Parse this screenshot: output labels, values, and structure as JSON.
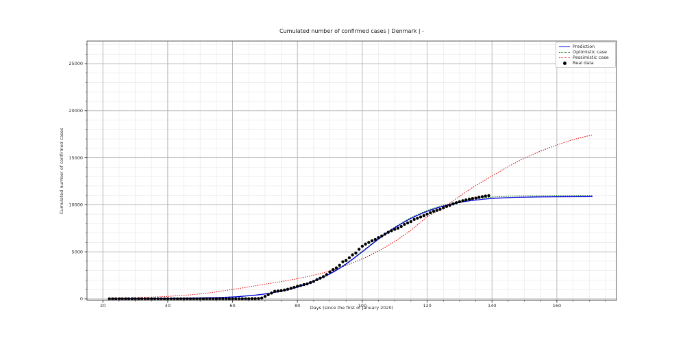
{
  "figure": {
    "title": "Cumulated number of confirmed cases | Denmark | -"
  },
  "chart_data": {
    "type": "line",
    "title": "Cumulated number of confirmed cases | Denmark | -",
    "xlabel": "Days (since the first of January 2020)",
    "ylabel": "Cumulated number of confirmed cases",
    "xlim": [
      15.1,
      178.4
    ],
    "ylim": [
      -150,
      27400
    ],
    "xticks": [
      20,
      40,
      60,
      80,
      100,
      120,
      140,
      160
    ],
    "yticks": [
      0,
      5000,
      10000,
      15000,
      20000,
      25000
    ],
    "x_minor_step": 5,
    "y_minor_step": 1000,
    "grid": true,
    "legend_position": "upper right",
    "colors": {
      "prediction": "#0000dd",
      "optimistic": "#007000",
      "pessimistic": "#e60000",
      "real_data": "#000000",
      "major_grid": "#b3b3b3",
      "minor_grid": "#e9e9e9",
      "spine": "#555555",
      "tick": "#333333"
    },
    "series": [
      {
        "name": "Prediction",
        "kind": "line",
        "style": "solid",
        "color": "#0000dd",
        "points": [
          [
            22,
            5
          ],
          [
            30,
            15
          ],
          [
            40,
            40
          ],
          [
            45,
            65
          ],
          [
            50,
            100
          ],
          [
            55,
            140
          ],
          [
            60,
            200
          ],
          [
            65,
            330
          ],
          [
            70,
            520
          ],
          [
            75,
            820
          ],
          [
            80,
            1250
          ],
          [
            85,
            1870
          ],
          [
            90,
            2650
          ],
          [
            95,
            3700
          ],
          [
            100,
            5000
          ],
          [
            105,
            6350
          ],
          [
            110,
            7550
          ],
          [
            115,
            8550
          ],
          [
            120,
            9300
          ],
          [
            125,
            9850
          ],
          [
            130,
            10250
          ],
          [
            135,
            10500
          ],
          [
            140,
            10670
          ],
          [
            145,
            10760
          ],
          [
            150,
            10810
          ],
          [
            155,
            10835
          ],
          [
            160,
            10855
          ],
          [
            165,
            10865
          ],
          [
            171,
            10870
          ]
        ]
      },
      {
        "name": "Optimistic case",
        "kind": "line",
        "style": "dotted",
        "color": "#007000",
        "points": [
          [
            22,
            5
          ],
          [
            30,
            16
          ],
          [
            40,
            42
          ],
          [
            50,
            105
          ],
          [
            60,
            210
          ],
          [
            65,
            340
          ],
          [
            70,
            540
          ],
          [
            75,
            845
          ],
          [
            80,
            1290
          ],
          [
            85,
            1920
          ],
          [
            90,
            2700
          ],
          [
            95,
            3760
          ],
          [
            100,
            5060
          ],
          [
            105,
            6420
          ],
          [
            110,
            7620
          ],
          [
            115,
            8620
          ],
          [
            120,
            9380
          ],
          [
            125,
            9940
          ],
          [
            130,
            10360
          ],
          [
            135,
            10640
          ],
          [
            140,
            10810
          ],
          [
            145,
            10900
          ],
          [
            150,
            10940
          ],
          [
            160,
            10975
          ],
          [
            171,
            10990
          ]
        ]
      },
      {
        "name": "Pessimistic case",
        "kind": "line",
        "style": "dotted",
        "color": "#e60000",
        "points": [
          [
            22,
            70
          ],
          [
            30,
            140
          ],
          [
            40,
            270
          ],
          [
            50,
            530
          ],
          [
            60,
            1000
          ],
          [
            70,
            1560
          ],
          [
            75,
            1840
          ],
          [
            80,
            2150
          ],
          [
            85,
            2520
          ],
          [
            90,
            2960
          ],
          [
            95,
            3560
          ],
          [
            100,
            4250
          ],
          [
            105,
            5100
          ],
          [
            110,
            6100
          ],
          [
            115,
            7300
          ],
          [
            120,
            8700
          ],
          [
            125,
            9700
          ],
          [
            130,
            10900
          ],
          [
            135,
            12050
          ],
          [
            140,
            13050
          ],
          [
            145,
            14050
          ],
          [
            150,
            14950
          ],
          [
            155,
            15700
          ],
          [
            160,
            16350
          ],
          [
            165,
            16920
          ],
          [
            171,
            17430
          ]
        ]
      },
      {
        "name": "Real data",
        "kind": "scatter",
        "style": "marker",
        "color": "#000000",
        "marker_radius": 2.2,
        "points": [
          [
            22,
            0
          ],
          [
            23,
            0
          ],
          [
            24,
            0
          ],
          [
            25,
            0
          ],
          [
            26,
            0
          ],
          [
            27,
            0
          ],
          [
            28,
            0
          ],
          [
            29,
            0
          ],
          [
            30,
            0
          ],
          [
            31,
            0
          ],
          [
            32,
            0
          ],
          [
            33,
            0
          ],
          [
            34,
            0
          ],
          [
            35,
            0
          ],
          [
            36,
            0
          ],
          [
            37,
            0
          ],
          [
            38,
            0
          ],
          [
            39,
            0
          ],
          [
            40,
            0
          ],
          [
            41,
            0
          ],
          [
            42,
            0
          ],
          [
            43,
            0
          ],
          [
            44,
            0
          ],
          [
            45,
            0
          ],
          [
            46,
            0
          ],
          [
            47,
            0
          ],
          [
            48,
            0
          ],
          [
            49,
            0
          ],
          [
            50,
            0
          ],
          [
            51,
            0
          ],
          [
            52,
            0
          ],
          [
            53,
            0
          ],
          [
            54,
            0
          ],
          [
            55,
            0
          ],
          [
            56,
            0
          ],
          [
            57,
            0
          ],
          [
            58,
            1
          ],
          [
            59,
            1
          ],
          [
            60,
            3
          ],
          [
            61,
            4
          ],
          [
            62,
            5
          ],
          [
            63,
            6
          ],
          [
            64,
            11
          ],
          [
            65,
            11
          ],
          [
            66,
            24
          ],
          [
            67,
            24
          ],
          [
            68,
            37
          ],
          [
            69,
            92
          ],
          [
            70,
            264
          ],
          [
            71,
            444
          ],
          [
            72,
            617
          ],
          [
            73,
            804
          ],
          [
            74,
            836
          ],
          [
            75,
            875
          ],
          [
            76,
            933
          ],
          [
            77,
            1025
          ],
          [
            78,
            1116
          ],
          [
            79,
            1225
          ],
          [
            80,
            1337
          ],
          [
            81,
            1420
          ],
          [
            82,
            1514
          ],
          [
            83,
            1591
          ],
          [
            84,
            1724
          ],
          [
            85,
            1851
          ],
          [
            86,
            2046
          ],
          [
            87,
            2201
          ],
          [
            88,
            2366
          ],
          [
            89,
            2577
          ],
          [
            90,
            2860
          ],
          [
            91,
            3107
          ],
          [
            92,
            3290
          ],
          [
            93,
            3573
          ],
          [
            94,
            3946
          ],
          [
            95,
            4077
          ],
          [
            96,
            4369
          ],
          [
            97,
            4681
          ],
          [
            98,
            4875
          ],
          [
            99,
            5266
          ],
          [
            100,
            5597
          ],
          [
            101,
            5819
          ],
          [
            102,
            5996
          ],
          [
            103,
            6174
          ],
          [
            104,
            6318
          ],
          [
            105,
            6511
          ],
          [
            106,
            6681
          ],
          [
            107,
            6879
          ],
          [
            108,
            7073
          ],
          [
            109,
            7242
          ],
          [
            110,
            7384
          ],
          [
            111,
            7515
          ],
          [
            112,
            7695
          ],
          [
            113,
            7912
          ],
          [
            114,
            8073
          ],
          [
            115,
            8210
          ],
          [
            116,
            8445
          ],
          [
            117,
            8575
          ],
          [
            118,
            8698
          ],
          [
            119,
            8851
          ],
          [
            120,
            9008
          ],
          [
            121,
            9158
          ],
          [
            122,
            9311
          ],
          [
            123,
            9407
          ],
          [
            124,
            9523
          ],
          [
            125,
            9670
          ],
          [
            126,
            9821
          ],
          [
            127,
            9938
          ],
          [
            128,
            10083
          ],
          [
            129,
            10218
          ],
          [
            130,
            10319
          ],
          [
            131,
            10429
          ],
          [
            132,
            10513
          ],
          [
            133,
            10591
          ],
          [
            134,
            10667
          ],
          [
            135,
            10713
          ],
          [
            136,
            10791
          ],
          [
            137,
            10858
          ],
          [
            138,
            10927
          ],
          [
            139,
            10968
          ]
        ]
      }
    ]
  },
  "legend": {
    "items": [
      {
        "label": "Prediction"
      },
      {
        "label": "Optimistic case"
      },
      {
        "label": "Pessimistic case"
      },
      {
        "label": "Real data"
      }
    ]
  }
}
